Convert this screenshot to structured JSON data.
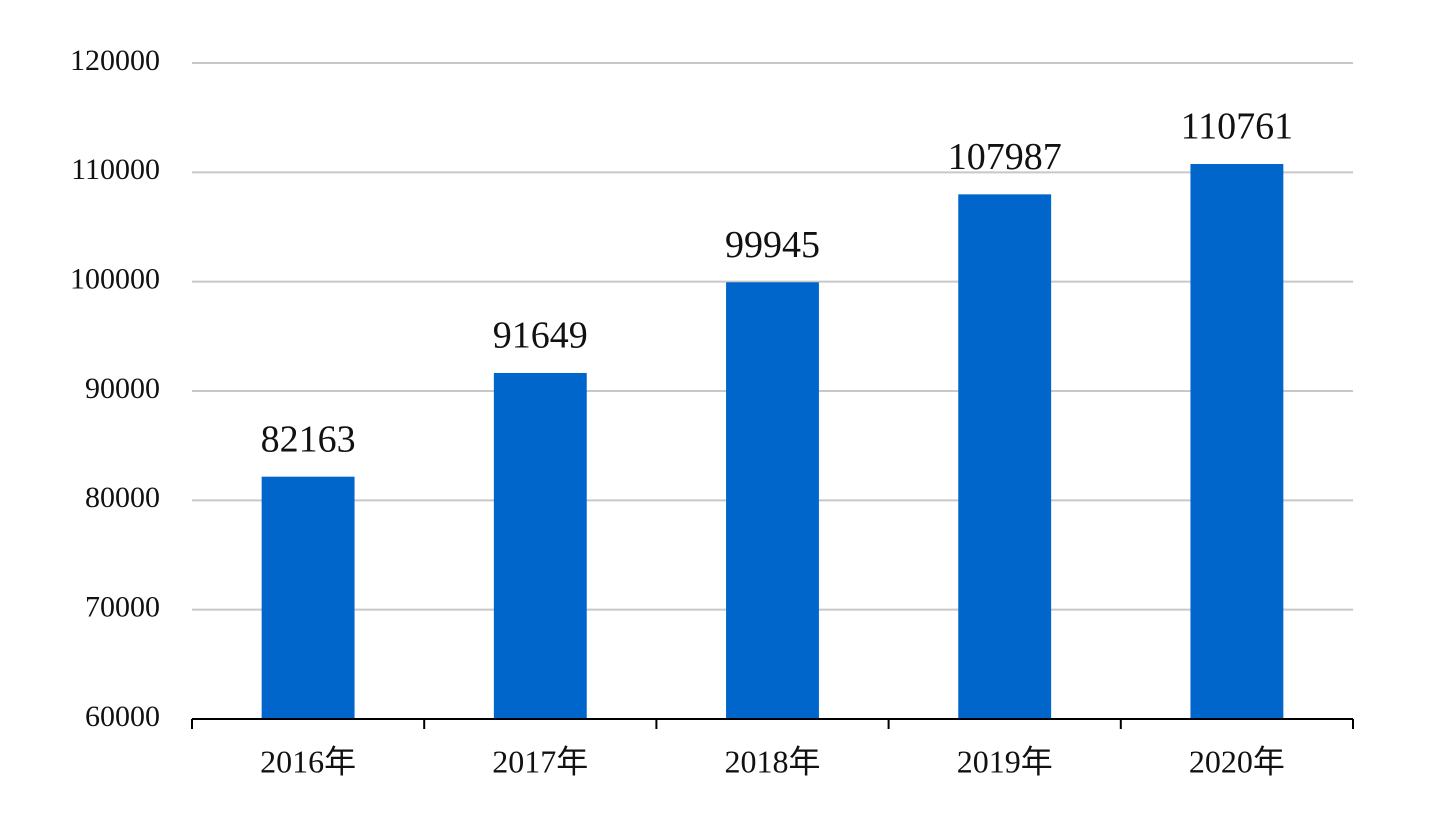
{
  "chart_data": {
    "type": "bar",
    "categories": [
      "2016年",
      "2017年",
      "2018年",
      "2019年",
      "2020年"
    ],
    "values": [
      82163,
      91649,
      99945,
      107987,
      110761
    ],
    "color": "#0066cc",
    "ylim": [
      60000,
      120000
    ],
    "yticks": [
      60000,
      70000,
      80000,
      90000,
      100000,
      110000,
      120000
    ],
    "grid": true
  }
}
